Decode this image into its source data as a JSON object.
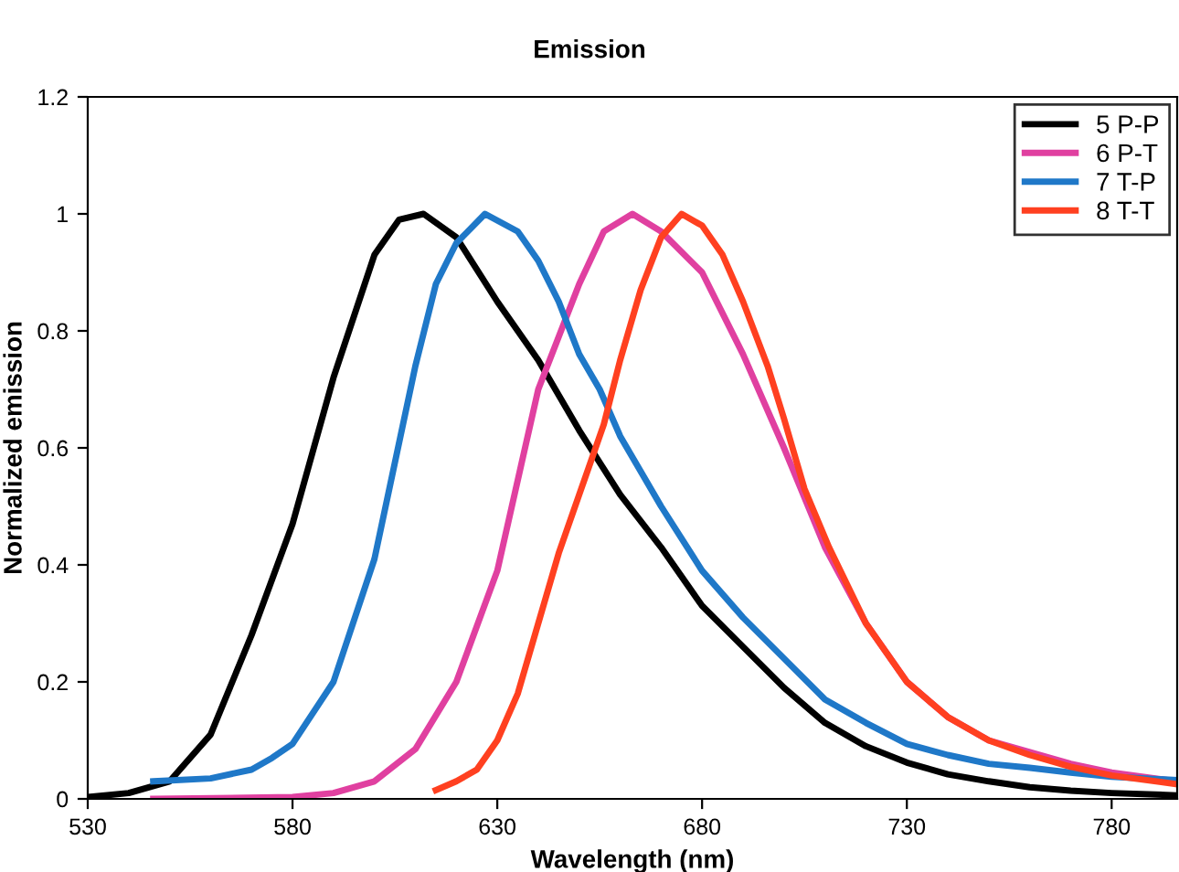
{
  "chart_data": {
    "type": "line",
    "title": "Emission",
    "xlabel": "Wavelength (nm)",
    "ylabel": "Normalized emission",
    "xlim": [
      530,
      796
    ],
    "xticks": [
      530,
      580,
      630,
      680,
      730,
      780
    ],
    "ylim": [
      0,
      1.2
    ],
    "yticks": [
      0,
      0.2,
      0.4,
      0.6,
      0.8,
      1,
      1.2
    ],
    "grid": false,
    "legend": "top right",
    "marker": "none",
    "line_style": "solid",
    "series": [
      {
        "name": "5 P-P",
        "color": "#000000",
        "x": [
          530,
          540,
          550,
          560,
          570,
          580,
          590,
          600,
          606,
          612,
          620,
          630,
          640,
          650,
          660,
          670,
          680,
          690,
          700,
          710,
          720,
          730,
          740,
          750,
          760,
          770,
          780,
          796
        ],
        "values": [
          0.003,
          0.01,
          0.03,
          0.11,
          0.28,
          0.47,
          0.72,
          0.93,
          0.99,
          1.0,
          0.96,
          0.85,
          0.75,
          0.63,
          0.52,
          0.43,
          0.33,
          0.26,
          0.19,
          0.13,
          0.09,
          0.062,
          0.042,
          0.03,
          0.02,
          0.014,
          0.01,
          0.006
        ]
      },
      {
        "name": "6 P-T",
        "color": "#e040a0",
        "x": [
          546,
          580,
          590,
          600,
          610,
          620,
          630,
          640,
          650,
          656,
          663,
          670,
          680,
          690,
          700,
          710,
          720,
          730,
          740,
          750,
          760,
          770,
          780,
          796
        ],
        "values": [
          0,
          0.003,
          0.01,
          0.03,
          0.085,
          0.2,
          0.39,
          0.7,
          0.88,
          0.97,
          1.0,
          0.97,
          0.9,
          0.76,
          0.6,
          0.43,
          0.3,
          0.2,
          0.14,
          0.1,
          0.08,
          0.06,
          0.045,
          0.03
        ]
      },
      {
        "name": "7 T-P",
        "color": "#1f78c8",
        "x": [
          546,
          560,
          570,
          575,
          580,
          590,
          600,
          610,
          615,
          620,
          627,
          635,
          640,
          645,
          650,
          655,
          660,
          670,
          680,
          690,
          700,
          710,
          720,
          730,
          740,
          750,
          760,
          770,
          780,
          796
        ],
        "values": [
          0.03,
          0.035,
          0.05,
          0.07,
          0.094,
          0.2,
          0.41,
          0.74,
          0.88,
          0.95,
          1.0,
          0.97,
          0.92,
          0.85,
          0.76,
          0.7,
          0.62,
          0.5,
          0.39,
          0.31,
          0.24,
          0.17,
          0.13,
          0.094,
          0.075,
          0.06,
          0.053,
          0.045,
          0.038,
          0.032
        ]
      },
      {
        "name": "8 T-T",
        "color": "#ff4020",
        "x": [
          615,
          620,
          625,
          630,
          635,
          640,
          645,
          650,
          656,
          660,
          665,
          670,
          675,
          680,
          685,
          690,
          696,
          700,
          705,
          711,
          720,
          730,
          740,
          750,
          760,
          770,
          780,
          796
        ],
        "values": [
          0.015,
          0.03,
          0.05,
          0.1,
          0.18,
          0.3,
          0.42,
          0.52,
          0.64,
          0.75,
          0.87,
          0.96,
          1.0,
          0.98,
          0.93,
          0.85,
          0.74,
          0.65,
          0.53,
          0.43,
          0.3,
          0.2,
          0.14,
          0.1,
          0.075,
          0.055,
          0.04,
          0.025
        ]
      }
    ]
  }
}
